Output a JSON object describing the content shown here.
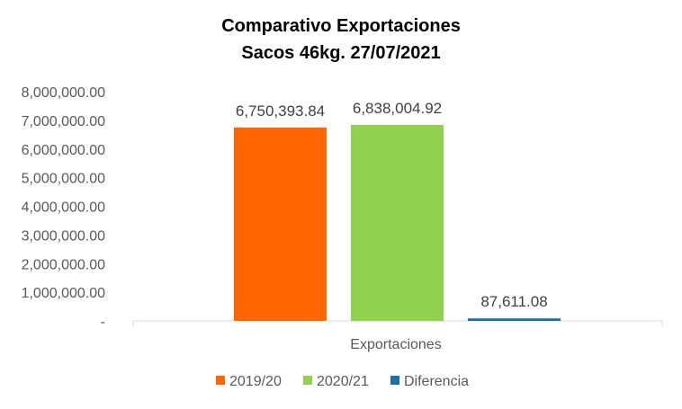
{
  "chart_data": {
    "type": "bar",
    "title_lines": [
      "Comparativo  Exportaciones",
      "Sacos 46kg. 27/07/2021"
    ],
    "categories": [
      "Exportaciones"
    ],
    "series": [
      {
        "name": "2019/20",
        "values": [
          6750393.84
        ],
        "label": "6,750,393.84",
        "color": "#FF6600"
      },
      {
        "name": "2020/21",
        "values": [
          6838004.92
        ],
        "label": "6,838,004.92",
        "color": "#92D050"
      },
      {
        "name": "Diferencia",
        "values": [
          87611.08
        ],
        "label": "87,611.08",
        "color": "#1F6E9E"
      }
    ],
    "ylim": [
      0,
      8000000
    ],
    "yticks": [
      0,
      1000000,
      2000000,
      3000000,
      4000000,
      5000000,
      6000000,
      7000000,
      8000000
    ],
    "ytick_labels": [
      "-",
      "1,000,000.00",
      "2,000,000.00",
      "3,000,000.00",
      "4,000,000.00",
      "5,000,000.00",
      "6,000,000.00",
      "7,000,000.00",
      "8,000,000.00"
    ],
    "grid": false,
    "legend_position": "bottom",
    "xlabel": "",
    "ylabel": ""
  }
}
